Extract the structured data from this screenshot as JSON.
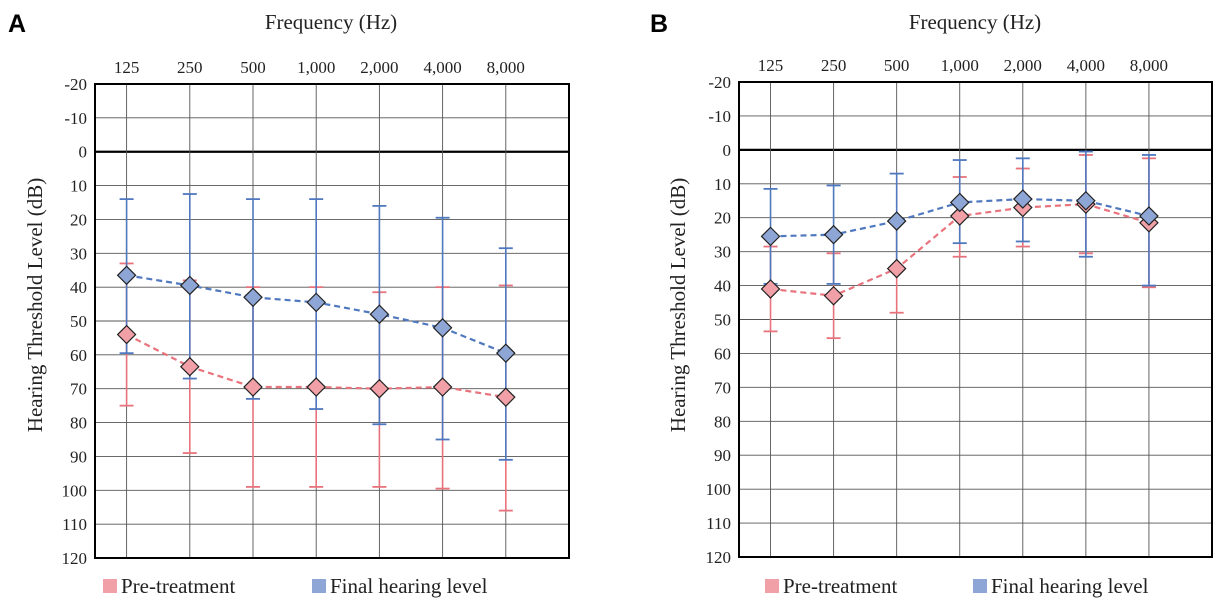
{
  "colors": {
    "pre": "#f2a0a7",
    "pre_line": "#e8737c",
    "final": "#8ea6d6",
    "final_line": "#4f78bf",
    "grid": "#333333"
  },
  "chart_data": [
    {
      "type": "line",
      "panel": "A",
      "xlabel": "Frequency (Hz)",
      "ylabel": "Hearing Threshold Level (dB)",
      "categories": [
        "125",
        "250",
        "500",
        "1,000",
        "2,000",
        "4,000",
        "8,000"
      ],
      "ylim": [
        -20,
        120
      ],
      "y_inverted": true,
      "yticks": [
        -20,
        -10,
        0,
        10,
        20,
        30,
        40,
        50,
        60,
        70,
        80,
        90,
        100,
        110,
        120
      ],
      "series": [
        {
          "name": "Pre-treatment",
          "values": [
            54,
            63.5,
            69.5,
            69.5,
            70,
            69.5,
            72.5
          ],
          "err_low": [
            33,
            38,
            40,
            40,
            41.5,
            40,
            39.5
          ],
          "err_high": [
            75,
            89,
            99,
            99,
            99,
            99.5,
            106
          ]
        },
        {
          "name": "Final hearing level",
          "values": [
            36.5,
            39.5,
            43,
            44.5,
            48,
            52,
            59.5
          ],
          "err_low": [
            14,
            12.5,
            14,
            14,
            16,
            19.5,
            28.5
          ],
          "err_high": [
            59.5,
            67,
            73,
            76,
            80.5,
            85,
            91
          ]
        }
      ],
      "legend": [
        "Pre-treatment",
        "Final hearing level"
      ],
      "legend_position": "bottom",
      "grid": true
    },
    {
      "type": "line",
      "panel": "B",
      "xlabel": "Frequency (Hz)",
      "ylabel": "Hearing Threshold Level (dB)",
      "categories": [
        "125",
        "250",
        "500",
        "1,000",
        "2,000",
        "4,000",
        "8,000"
      ],
      "ylim": [
        -20,
        120
      ],
      "y_inverted": true,
      "yticks": [
        -20,
        -10,
        0,
        10,
        20,
        30,
        40,
        50,
        60,
        70,
        80,
        90,
        100,
        110,
        120
      ],
      "series": [
        {
          "name": "Pre-treatment",
          "values": [
            41,
            43,
            35,
            19.5,
            17,
            16,
            21.5
          ],
          "err_low": [
            28.5,
            30.5,
            21.5,
            8,
            5.5,
            1.5,
            2.5
          ],
          "err_high": [
            53.5,
            55.5,
            48,
            31.5,
            28.5,
            30.5,
            40.5
          ]
        },
        {
          "name": "Final hearing level",
          "values": [
            25.5,
            25,
            21,
            15.5,
            14.5,
            15,
            19.5
          ],
          "err_low": [
            11.5,
            10.5,
            7,
            3,
            2.5,
            0.5,
            1.5
          ],
          "err_high": [
            39.5,
            39.5,
            35.5,
            27.5,
            27,
            31.5,
            40
          ]
        }
      ],
      "legend": [
        "Pre-treatment",
        "Final hearing level"
      ],
      "legend_position": "bottom",
      "grid": true
    }
  ]
}
